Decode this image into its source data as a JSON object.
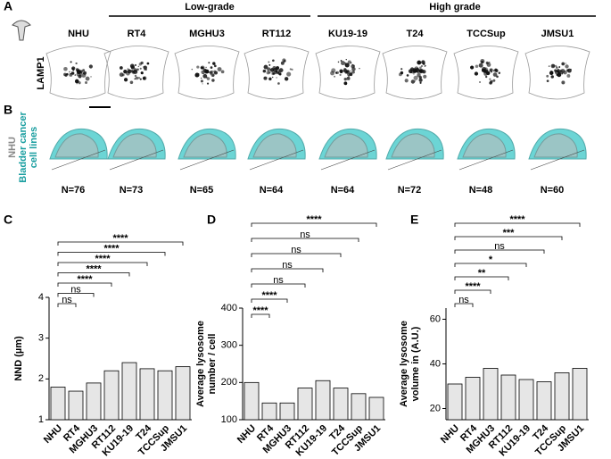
{
  "panel_labels": [
    "A",
    "B",
    "C",
    "D",
    "E"
  ],
  "grade_groups": [
    "Low-grade",
    "High grade"
  ],
  "cell_lines": [
    "NHU",
    "RT4",
    "MGHU3",
    "RT112",
    "KU19-19",
    "T24",
    "TCCSup",
    "JMSU1"
  ],
  "stain_label": "LAMP1",
  "overlay_labels": [
    "NHU",
    "Bladder cancer",
    "cell lines"
  ],
  "cell_counts": [
    "N=76",
    "N=73",
    "N=65",
    "N=64",
    "N=64",
    "N=72",
    "N=48",
    "N=60"
  ],
  "chart_data": [
    {
      "type": "bar",
      "y_label": [
        "NND  (µm)"
      ],
      "categories": [
        "NHU",
        "RT4",
        "MGHU3",
        "RT112",
        "KU19-19",
        "T24",
        "TCCSup",
        "JMSU1"
      ],
      "values": [
        1.8,
        1.7,
        1.9,
        2.2,
        2.4,
        2.25,
        2.2,
        2.3
      ],
      "significance": [
        "ns",
        "ns",
        "****",
        "****",
        "****",
        "****",
        "****"
      ],
      "color": "#e6e6e6",
      "ylim": [
        1,
        4
      ],
      "yticks": [
        1,
        2,
        3,
        4
      ]
    },
    {
      "type": "bar",
      "y_label": [
        "Average lysosome",
        "number / cell"
      ],
      "categories": [
        "NHU",
        "RT4",
        "MGHU3",
        "RT112",
        "KU19-19",
        "T24",
        "TCCSup",
        "JMSU1"
      ],
      "values": [
        200,
        145,
        145,
        185,
        205,
        185,
        170,
        160
      ],
      "significance": [
        "****",
        "****",
        "ns",
        "ns",
        "ns",
        "ns",
        "****"
      ],
      "color": "#e6e6e6",
      "ylim": [
        100,
        400
      ],
      "yticks": [
        100,
        200,
        300,
        400
      ]
    },
    {
      "type": "bar",
      "y_label": [
        "Average lysosome",
        "volume in (A.U.)"
      ],
      "categories": [
        "NHU",
        "RT4",
        "MGHU3",
        "RT112",
        "KU19-19",
        "T24",
        "TCCSup",
        "JMSU1"
      ],
      "values": [
        31,
        34,
        38,
        35,
        33,
        32,
        36,
        38
      ],
      "significance": [
        "ns",
        "****",
        "**",
        "*",
        "ns",
        "***",
        "****"
      ],
      "color": "#e6e6e6",
      "ylim": [
        15,
        65
      ],
      "yticks": [
        20,
        40,
        60
      ]
    }
  ]
}
